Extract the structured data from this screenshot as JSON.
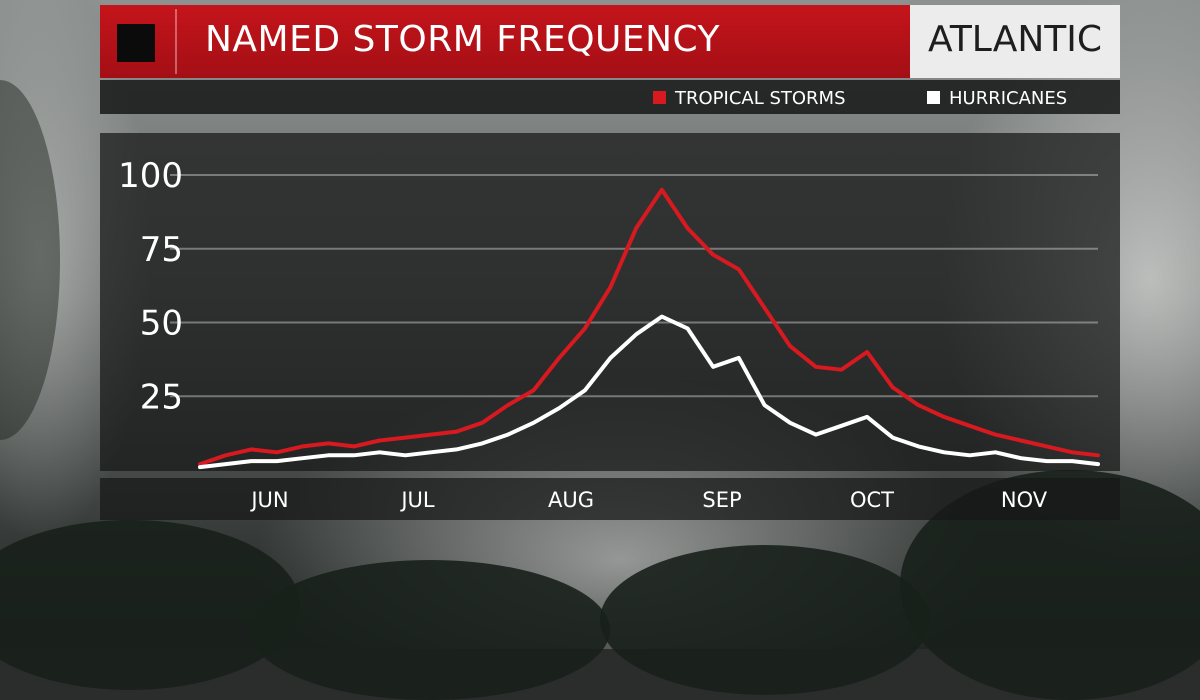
{
  "header": {
    "title": "NAMED STORM FREQUENCY",
    "region": "ATLANTIC"
  },
  "legend": [
    {
      "label": "TROPICAL STORMS",
      "color": "#d71920"
    },
    {
      "label": "HURRICANES",
      "color": "#ffffff"
    }
  ],
  "chart_data": {
    "type": "line",
    "title": "NAMED STORM FREQUENCY",
    "xlabel": "",
    "ylabel": "",
    "ylim": [
      0,
      100
    ],
    "yticks": [
      25,
      50,
      75,
      100
    ],
    "xticks": [
      "JUN",
      "JUL",
      "AUG",
      "SEP",
      "OCT",
      "NOV"
    ],
    "grid": true,
    "legend_position": "top-right",
    "x": [
      "Jun 1",
      "Jun 6",
      "Jun 11",
      "Jun 16",
      "Jun 21",
      "Jun 26",
      "Jul 1",
      "Jul 6",
      "Jul 11",
      "Jul 16",
      "Jul 21",
      "Jul 26",
      "Aug 1",
      "Aug 6",
      "Aug 11",
      "Aug 16",
      "Aug 21",
      "Aug 26",
      "Sep 1",
      "Sep 6",
      "Sep 11",
      "Sep 16",
      "Sep 21",
      "Sep 26",
      "Oct 1",
      "Oct 6",
      "Oct 11",
      "Oct 16",
      "Oct 21",
      "Oct 26",
      "Nov 1",
      "Nov 6",
      "Nov 11",
      "Nov 16",
      "Nov 21",
      "Nov 30"
    ],
    "series": [
      {
        "name": "TROPICAL STORMS",
        "color": "#d71920",
        "values": [
          2,
          5,
          7,
          6,
          8,
          9,
          8,
          10,
          11,
          12,
          13,
          16,
          22,
          27,
          38,
          48,
          62,
          82,
          95,
          82,
          73,
          68,
          55,
          42,
          35,
          34,
          40,
          28,
          22,
          18,
          15,
          12,
          10,
          8,
          6,
          5
        ]
      },
      {
        "name": "HURRICANES",
        "color": "#ffffff",
        "values": [
          1,
          2,
          3,
          3,
          4,
          5,
          5,
          6,
          5,
          6,
          7,
          9,
          12,
          16,
          21,
          27,
          38,
          46,
          52,
          48,
          35,
          38,
          22,
          16,
          12,
          15,
          18,
          11,
          8,
          6,
          5,
          6,
          4,
          3,
          3,
          2
        ]
      }
    ]
  }
}
